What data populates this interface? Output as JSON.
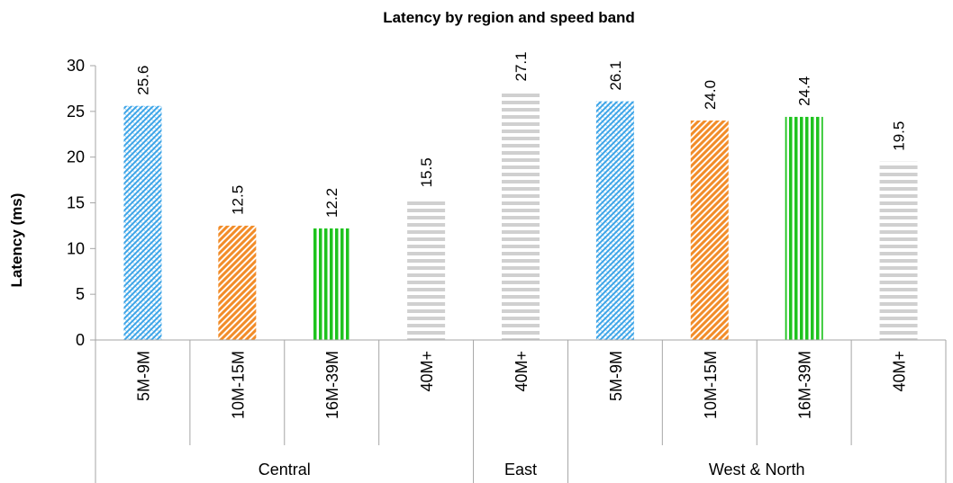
{
  "chart_data": {
    "type": "bar",
    "title": "Latency by region and speed band",
    "ylabel": "Latency (ms)",
    "ylim": [
      0,
      30
    ],
    "yticks": [
      0,
      5,
      10,
      15,
      20,
      25,
      30
    ],
    "grid": false,
    "bars": [
      {
        "group": "Central",
        "category": "5M-9M",
        "value": 25.6,
        "label": "25.6"
      },
      {
        "group": "Central",
        "category": "10M-15M",
        "value": 12.5,
        "label": "12.5"
      },
      {
        "group": "Central",
        "category": "16M-39M",
        "value": 12.2,
        "label": "12.2"
      },
      {
        "group": "Central",
        "category": "40M+",
        "value": 15.5,
        "label": "15.5"
      },
      {
        "group": "East",
        "category": "40M+",
        "value": 27.1,
        "label": "27.1"
      },
      {
        "group": "West & North",
        "category": "5M-9M",
        "value": 26.1,
        "label": "26.1"
      },
      {
        "group": "West & North",
        "category": "10M-15M",
        "value": 24.0,
        "label": "24.0"
      },
      {
        "group": "West & North",
        "category": "16M-39M",
        "value": 24.4,
        "label": "24.4"
      },
      {
        "group": "West & North",
        "category": "40M+",
        "value": 19.5,
        "label": "19.5"
      }
    ],
    "groups": [
      "Central",
      "East",
      "West & North"
    ],
    "category_colors": {
      "5M-9M": "#3da5e8",
      "10M-15M": "#f28c28",
      "16M-39M": "#1ec31e",
      "40M+": "#d0d0d0"
    }
  }
}
